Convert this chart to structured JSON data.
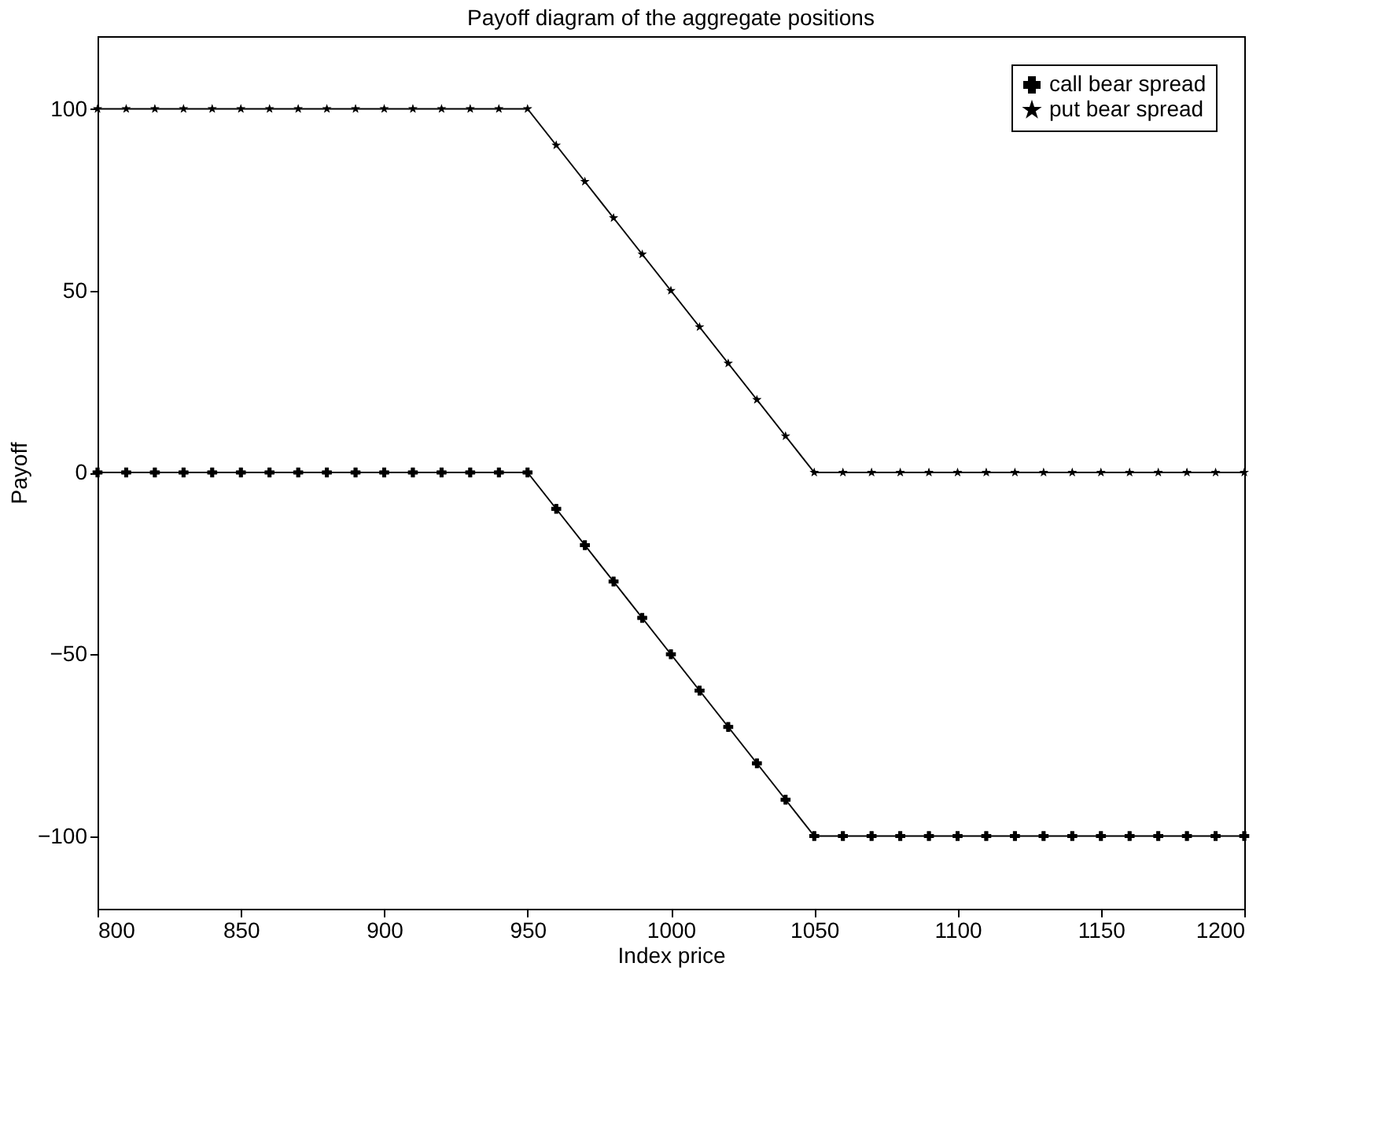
{
  "chart_data": {
    "type": "line",
    "title": "Payoff diagram of the aggregate positions",
    "xlabel": "Index price",
    "ylabel": "Payoff",
    "x": [
      800,
      810,
      820,
      830,
      840,
      850,
      860,
      870,
      880,
      890,
      900,
      910,
      920,
      930,
      940,
      950,
      960,
      970,
      980,
      990,
      1000,
      1010,
      1020,
      1030,
      1040,
      1050,
      1060,
      1070,
      1080,
      1090,
      1100,
      1110,
      1120,
      1130,
      1140,
      1150,
      1160,
      1170,
      1180,
      1190,
      1200
    ],
    "series": [
      {
        "name": "call bear spread",
        "color": "#000000",
        "marker": "cross",
        "values": [
          0,
          0,
          0,
          0,
          0,
          0,
          0,
          0,
          0,
          0,
          0,
          0,
          0,
          0,
          0,
          0,
          -10,
          -20,
          -30,
          -40,
          -50,
          -60,
          -70,
          -80,
          -90,
          -100,
          -100,
          -100,
          -100,
          -100,
          -100,
          -100,
          -100,
          -100,
          -100,
          -100,
          -100,
          -100,
          -100,
          -100,
          -100
        ]
      },
      {
        "name": "put bear spread",
        "color": "#000000",
        "marker": "star",
        "values": [
          100,
          100,
          100,
          100,
          100,
          100,
          100,
          100,
          100,
          100,
          100,
          100,
          100,
          100,
          100,
          100,
          90,
          80,
          70,
          60,
          50,
          40,
          30,
          20,
          10,
          0,
          0,
          0,
          0,
          0,
          0,
          0,
          0,
          0,
          0,
          0,
          0,
          0,
          0,
          0,
          0
        ]
      }
    ],
    "xlim": [
      800,
      1200
    ],
    "xticks": [
      800,
      850,
      900,
      950,
      1000,
      1050,
      1100,
      1150,
      1200
    ],
    "ylim": [
      -120,
      120
    ],
    "yticks": [
      -100,
      -50,
      0,
      50,
      100
    ],
    "grid": false,
    "legend": "top right",
    "line_style": "solid"
  }
}
